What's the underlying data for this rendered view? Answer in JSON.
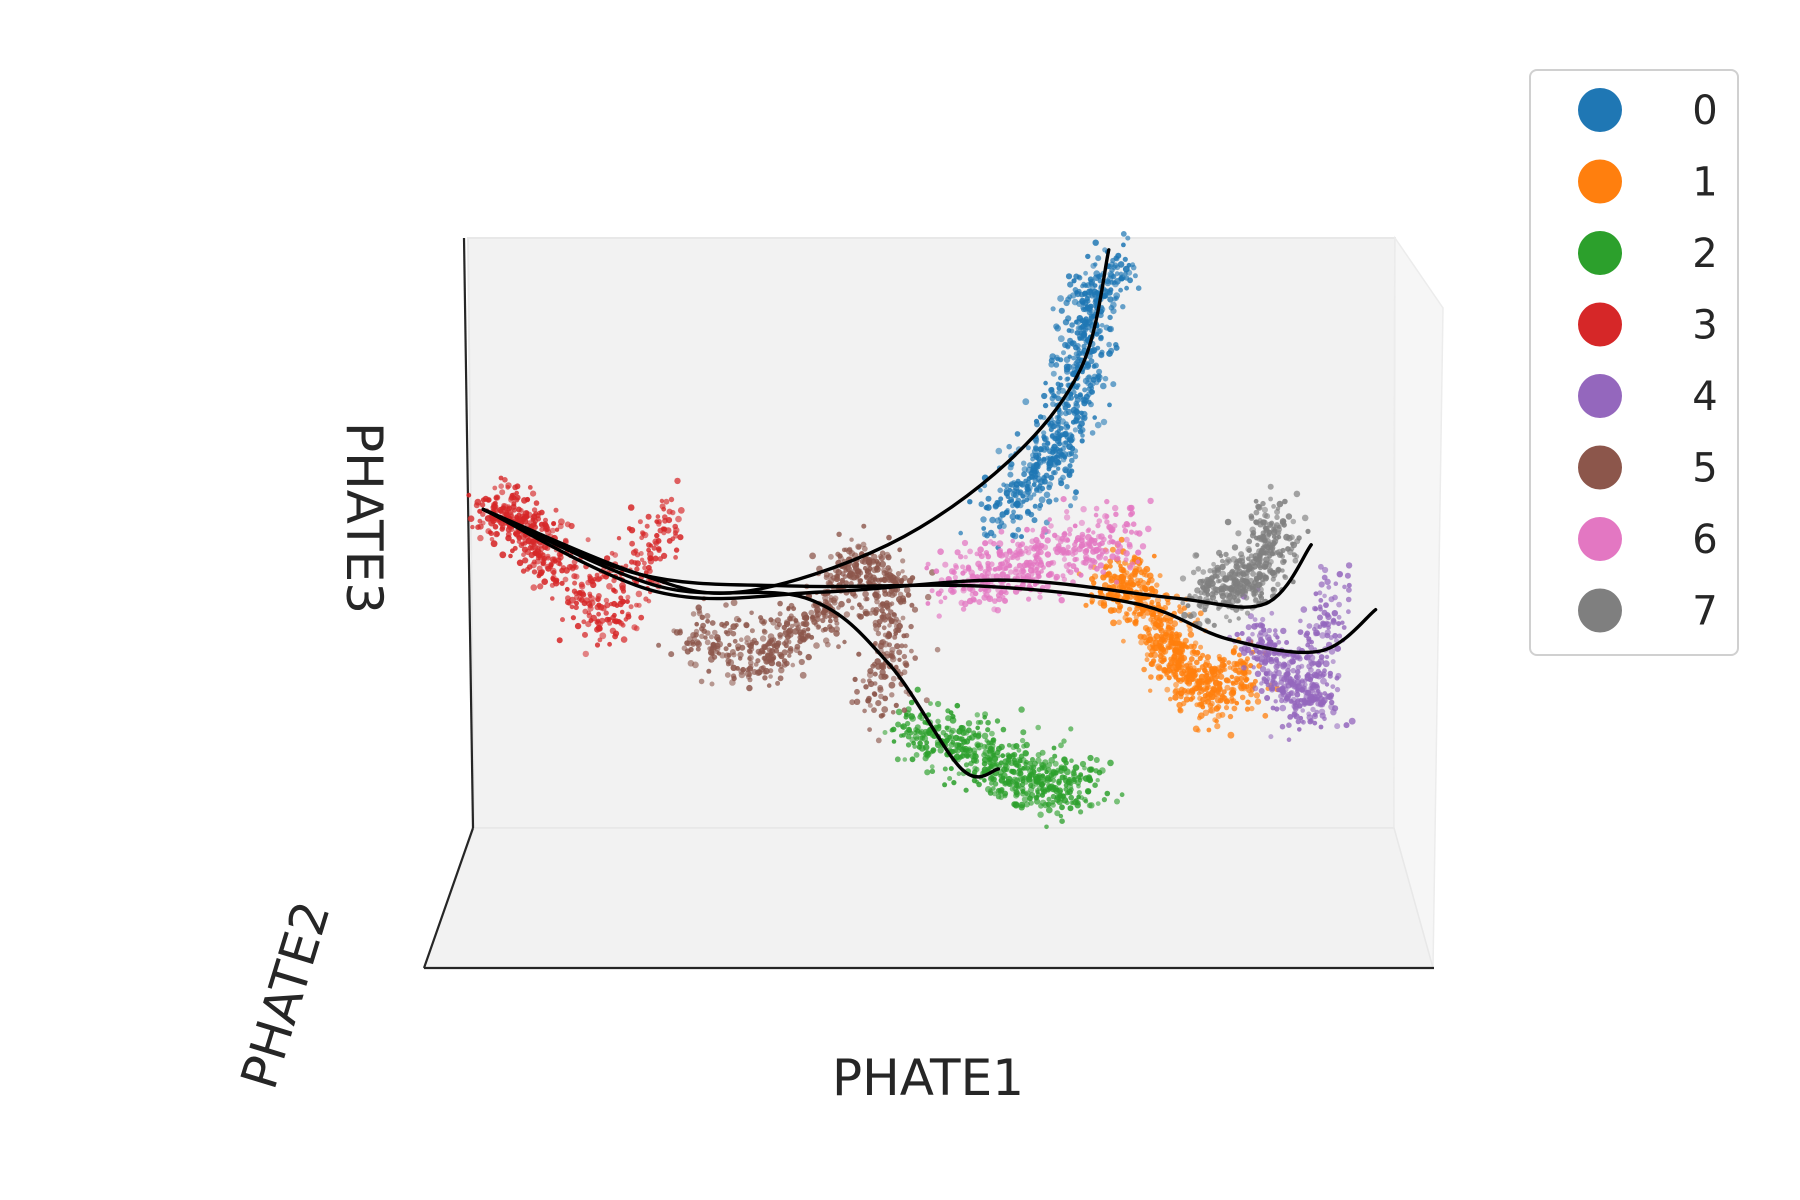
{
  "chart_data": {
    "type": "scatter",
    "projection": "3d",
    "title": "",
    "xlabel": "PHATE1",
    "ylabel": "PHATE2",
    "zlabel": "PHATE3",
    "grid": false,
    "axis_ticks": false,
    "point_style": "small translucent markers, thousands of cells per cluster",
    "legend": {
      "placement": "outside-right",
      "entries": [
        {
          "label": "0",
          "color": "#1f77b4"
        },
        {
          "label": "1",
          "color": "#ff7f0e"
        },
        {
          "label": "2",
          "color": "#2ca02c"
        },
        {
          "label": "3",
          "color": "#d62728"
        },
        {
          "label": "4",
          "color": "#9467bd"
        },
        {
          "label": "5",
          "color": "#8c564b"
        },
        {
          "label": "6",
          "color": "#e377c2"
        },
        {
          "label": "7",
          "color": "#7f7f7f"
        }
      ]
    },
    "clusters": [
      {
        "label": "0",
        "color": "#1f77b4",
        "cloud": [
          [
            0.57,
            0.52
          ],
          [
            0.62,
            0.6
          ],
          [
            0.64,
            0.68
          ],
          [
            0.66,
            0.78
          ],
          [
            0.67,
            0.88
          ],
          [
            0.7,
            0.96
          ]
        ]
      },
      {
        "label": "1",
        "color": "#ff7f0e",
        "cloud": [
          [
            0.69,
            0.43
          ],
          [
            0.72,
            0.4
          ],
          [
            0.75,
            0.33
          ],
          [
            0.77,
            0.27
          ],
          [
            0.8,
            0.22
          ],
          [
            0.84,
            0.27
          ]
        ]
      },
      {
        "label": "2",
        "color": "#2ca02c",
        "cloud": [
          [
            0.47,
            0.17
          ],
          [
            0.53,
            0.14
          ],
          [
            0.58,
            0.1
          ],
          [
            0.62,
            0.07
          ],
          [
            0.67,
            0.08
          ]
        ]
      },
      {
        "label": "3",
        "color": "#d62728",
        "cloud": [
          [
            0.02,
            0.54
          ],
          [
            0.05,
            0.52
          ],
          [
            0.08,
            0.46
          ],
          [
            0.15,
            0.35
          ],
          [
            0.21,
            0.54
          ]
        ]
      },
      {
        "label": "4",
        "color": "#9467bd",
        "cloud": [
          [
            0.85,
            0.33
          ],
          [
            0.88,
            0.25
          ],
          [
            0.91,
            0.2
          ],
          [
            0.93,
            0.41
          ]
        ]
      },
      {
        "label": "5",
        "color": "#8c564b",
        "cloud": [
          [
            0.24,
            0.33
          ],
          [
            0.31,
            0.29
          ],
          [
            0.37,
            0.35
          ],
          [
            0.42,
            0.45
          ],
          [
            0.46,
            0.38
          ],
          [
            0.44,
            0.2
          ]
        ]
      },
      {
        "label": "6",
        "color": "#e377c2",
        "cloud": [
          [
            0.52,
            0.41
          ],
          [
            0.58,
            0.44
          ],
          [
            0.64,
            0.46
          ],
          [
            0.71,
            0.5
          ]
        ]
      },
      {
        "label": "7",
        "color": "#7f7f7f",
        "cloud": [
          [
            0.79,
            0.4
          ],
          [
            0.83,
            0.41
          ],
          [
            0.86,
            0.44
          ],
          [
            0.87,
            0.53
          ]
        ]
      }
    ],
    "trajectories": [
      {
        "color": "#000000",
        "points": [
          [
            0.01,
            0.54
          ],
          [
            0.18,
            0.43
          ],
          [
            0.29,
            0.4
          ],
          [
            0.45,
            0.48
          ],
          [
            0.58,
            0.62
          ],
          [
            0.66,
            0.78
          ],
          [
            0.69,
            0.98
          ]
        ]
      },
      {
        "color": "#000000",
        "points": [
          [
            0.01,
            0.54
          ],
          [
            0.2,
            0.41
          ],
          [
            0.36,
            0.39
          ],
          [
            0.45,
            0.28
          ],
          [
            0.53,
            0.1
          ],
          [
            0.57,
            0.1
          ]
        ]
      },
      {
        "color": "#000000",
        "points": [
          [
            0.01,
            0.54
          ],
          [
            0.2,
            0.4
          ],
          [
            0.38,
            0.4
          ],
          [
            0.58,
            0.42
          ],
          [
            0.76,
            0.39
          ],
          [
            0.86,
            0.38
          ],
          [
            0.91,
            0.48
          ]
        ]
      },
      {
        "color": "#000000",
        "points": [
          [
            0.01,
            0.54
          ],
          [
            0.18,
            0.43
          ],
          [
            0.35,
            0.41
          ],
          [
            0.55,
            0.41
          ],
          [
            0.72,
            0.38
          ],
          [
            0.82,
            0.32
          ],
          [
            0.92,
            0.3
          ],
          [
            0.98,
            0.37
          ]
        ]
      }
    ]
  }
}
